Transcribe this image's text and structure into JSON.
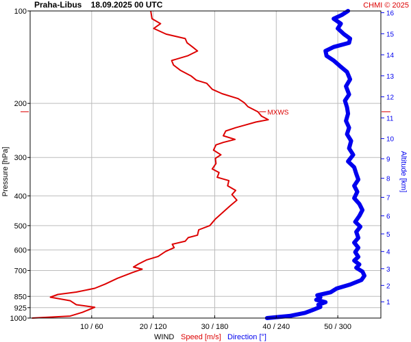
{
  "chart_data": {
    "type": "line",
    "title": "Praha-Libus    18.09.2025 00 UTC",
    "credit": "CHMI © 2025",
    "ylabel_left": "Pressure [hPa]",
    "ylabel_right": "Altitude [km]",
    "xlabel_prefix": "WIND",
    "xlabel_speed": "Speed [m/s]",
    "xlabel_direction": "Direction [°]",
    "pressure_ticks": [
      100,
      200,
      300,
      400,
      500,
      600,
      700,
      850,
      925,
      1000
    ],
    "pressure_tick_labels": [
      "100",
      "200",
      "300",
      "400",
      "500",
      "600",
      "700",
      "850",
      "925",
      "1000"
    ],
    "altitude_ticks": [
      1,
      2,
      3,
      4,
      5,
      6,
      7,
      8,
      9,
      10,
      11,
      12,
      13,
      14,
      15,
      16
    ],
    "altitude_tick_labels": [
      "1",
      "2",
      "3",
      "4",
      "5",
      "6",
      "7",
      "8",
      "9",
      "10",
      "11",
      "12",
      "13",
      "14",
      "15",
      "16"
    ],
    "x_ticks": [
      10,
      20,
      30,
      40,
      50
    ],
    "x_tick_labels": [
      "10 / 60",
      "20 / 120",
      "30 / 180",
      "40 / 240",
      "50 / 300"
    ],
    "xlim_speed": [
      0,
      57
    ],
    "ylim_pressure": [
      1000,
      100
    ],
    "log_pressure_axis": true,
    "grid": true,
    "annotation": {
      "text": "MXWS",
      "speed": 37,
      "pressure": 213
    },
    "colors": {
      "speed": "#dd0000",
      "direction": "#0000ee",
      "grid": "#bbbbbb",
      "axis": "#000000"
    },
    "series": [
      {
        "name": "Speed [m/s]",
        "points": [
          [
            0.3,
            1000
          ],
          [
            6.5,
            985
          ],
          [
            8.5,
            958
          ],
          [
            10.5,
            922
          ],
          [
            7.5,
            905
          ],
          [
            6.5,
            878
          ],
          [
            3.3,
            855
          ],
          [
            4.5,
            838
          ],
          [
            7.5,
            823
          ],
          [
            10.5,
            800
          ],
          [
            12.2,
            775
          ],
          [
            14.2,
            742
          ],
          [
            16.7,
            710
          ],
          [
            18.2,
            693
          ],
          [
            16.8,
            682
          ],
          [
            17.6,
            667
          ],
          [
            18.9,
            647
          ],
          [
            20.8,
            630
          ],
          [
            22.0,
            607
          ],
          [
            23.4,
            590
          ],
          [
            23.1,
            575
          ],
          [
            25.2,
            562
          ],
          [
            25.7,
            547
          ],
          [
            27.2,
            537
          ],
          [
            27.4,
            516
          ],
          [
            29.2,
            500
          ],
          [
            30.1,
            476
          ],
          [
            31.2,
            455
          ],
          [
            32.4,
            433
          ],
          [
            33.6,
            413
          ],
          [
            32.8,
            396
          ],
          [
            33.4,
            384
          ],
          [
            32.1,
            371
          ],
          [
            32.3,
            357
          ],
          [
            30.4,
            348
          ],
          [
            30.7,
            336
          ],
          [
            29.6,
            327
          ],
          [
            30.2,
            314
          ],
          [
            30.1,
            302
          ],
          [
            31.0,
            294
          ],
          [
            29.8,
            284
          ],
          [
            30.2,
            273
          ],
          [
            31.4,
            268
          ],
          [
            33.3,
            262
          ],
          [
            31.4,
            255
          ],
          [
            31.8,
            246
          ],
          [
            33.4,
            240
          ],
          [
            34.7,
            236
          ],
          [
            36.7,
            230
          ],
          [
            38.7,
            226
          ],
          [
            37.6,
            220
          ],
          [
            37.0,
            213
          ],
          [
            35.4,
            205
          ],
          [
            34.8,
            199
          ],
          [
            33.8,
            193
          ],
          [
            31.2,
            186
          ],
          [
            29.6,
            180
          ],
          [
            28.7,
            172
          ],
          [
            27.0,
            168
          ],
          [
            26.2,
            163
          ],
          [
            24.4,
            156
          ],
          [
            23.3,
            150
          ],
          [
            23.0,
            145
          ],
          [
            25.6,
            140
          ],
          [
            27.2,
            135
          ],
          [
            26.4,
            131
          ],
          [
            25.5,
            127
          ],
          [
            25.2,
            123
          ],
          [
            22.1,
            119
          ],
          [
            20.1,
            114
          ],
          [
            21.2,
            110
          ],
          [
            19.8,
            106
          ],
          [
            19.6,
            100
          ]
        ]
      },
      {
        "name": "Direction [°]",
        "points": [
          [
            231,
            1000
          ],
          [
            253,
            984
          ],
          [
            268,
            962
          ],
          [
            276,
            940
          ],
          [
            283,
            920
          ],
          [
            281,
            905
          ],
          [
            288,
            888
          ],
          [
            279,
            872
          ],
          [
            283,
            856
          ],
          [
            280,
            843
          ],
          [
            293,
            824
          ],
          [
            299,
            801
          ],
          [
            312,
            778
          ],
          [
            323,
            752
          ],
          [
            326,
            728
          ],
          [
            324,
            706
          ],
          [
            318,
            686
          ],
          [
            321,
            669
          ],
          [
            316,
            650
          ],
          [
            320,
            632
          ],
          [
            317,
            610
          ],
          [
            320,
            590
          ],
          [
            316,
            568
          ],
          [
            320,
            548
          ],
          [
            318,
            524
          ],
          [
            322,
            504
          ],
          [
            317,
            486
          ],
          [
            321,
            465
          ],
          [
            324,
            445
          ],
          [
            321,
            425
          ],
          [
            316,
            407
          ],
          [
            319,
            388
          ],
          [
            316,
            371
          ],
          [
            320,
            354
          ],
          [
            318,
            339
          ],
          [
            316,
            323
          ],
          [
            310,
            309
          ],
          [
            315,
            294
          ],
          [
            311,
            280
          ],
          [
            313,
            265
          ],
          [
            309,
            252
          ],
          [
            311,
            240
          ],
          [
            308,
            228
          ],
          [
            310,
            216
          ],
          [
            309,
            206
          ],
          [
            307,
            196
          ],
          [
            311,
            187
          ],
          [
            308,
            176
          ],
          [
            312,
            167
          ],
          [
            309,
            158
          ],
          [
            302,
            151
          ],
          [
            296,
            145
          ],
          [
            289,
            140
          ],
          [
            288,
            135
          ],
          [
            296,
            131
          ],
          [
            311,
            127
          ],
          [
            312,
            123
          ],
          [
            306,
            119
          ],
          [
            300,
            114
          ],
          [
            303,
            110
          ],
          [
            296,
            106
          ],
          [
            304,
            103
          ],
          [
            310,
            100
          ]
        ]
      }
    ]
  }
}
